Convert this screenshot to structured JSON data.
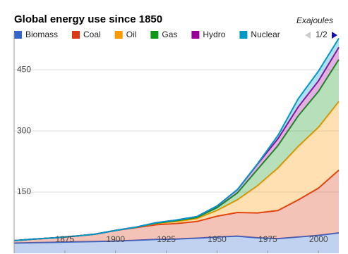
{
  "chart_data": {
    "type": "area",
    "title": "Global energy use since 1850",
    "y_label": "Exajoules",
    "legend_page": "1/2",
    "x": [
      1850,
      1860,
      1870,
      1880,
      1890,
      1900,
      1910,
      1920,
      1930,
      1940,
      1950,
      1960,
      1970,
      1980,
      1990,
      2000,
      2010
    ],
    "xlim": [
      1850,
      2010
    ],
    "xticks": [
      1875,
      1900,
      1925,
      1950,
      1975,
      2000
    ],
    "ylim": [
      0,
      540
    ],
    "yticks": [
      150,
      300,
      450
    ],
    "grid": true,
    "stacked": true,
    "series": [
      {
        "name": "Biomass",
        "color": "#3366cc",
        "values": [
          25,
          26,
          27,
          28,
          29,
          30,
          32,
          34,
          35,
          37,
          40,
          42,
          38,
          36,
          40,
          44,
          50
        ]
      },
      {
        "name": "Coal",
        "color": "#dc3912",
        "values": [
          6,
          9,
          11,
          14,
          18,
          26,
          31,
          36,
          38,
          41,
          51,
          58,
          61,
          69,
          91,
          116,
          154
        ]
      },
      {
        "name": "Oil",
        "color": "#ff9900",
        "values": [
          0,
          0,
          0,
          0,
          0,
          0,
          1,
          3,
          5,
          7,
          14,
          31,
          67,
          104,
          131,
          149,
          168
        ]
      },
      {
        "name": "Gas",
        "color": "#109618",
        "values": [
          0,
          0,
          0,
          0,
          0,
          0,
          0,
          1,
          2,
          3,
          7,
          17,
          40,
          55,
          75,
          88,
          103
        ]
      },
      {
        "name": "Hydro",
        "color": "#990099",
        "values": [
          0,
          0,
          0,
          0,
          0,
          0,
          0,
          1,
          1.5,
          2,
          4,
          8,
          13,
          17,
          22,
          26,
          30
        ]
      },
      {
        "name": "Nuclear",
        "color": "#0099c6",
        "values": [
          0,
          0,
          0,
          0,
          0,
          0,
          0,
          0,
          0,
          0,
          0,
          0,
          1,
          8,
          20,
          24,
          22
        ]
      }
    ]
  }
}
